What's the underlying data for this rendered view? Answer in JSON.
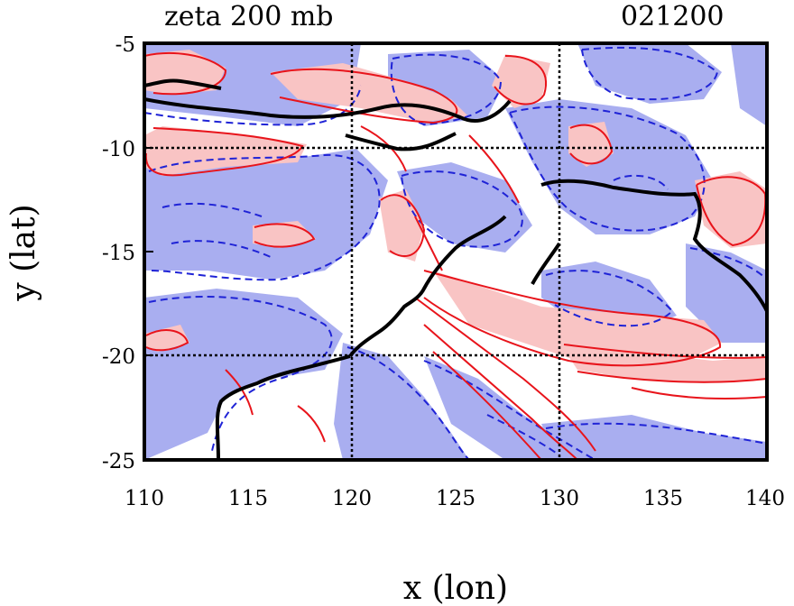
{
  "title": {
    "variable": "zeta 200 mb",
    "timestamp": "021200"
  },
  "chart_data": {
    "type": "contour-map",
    "title": "zeta 200 mb",
    "time_label": "021200",
    "xlabel": "x (lon)",
    "ylabel": "y (lat)",
    "xlim": [
      110,
      140
    ],
    "ylim": [
      -25,
      -5
    ],
    "xticks": [
      "110",
      "115",
      "120",
      "125",
      "130",
      "135",
      "140"
    ],
    "yticks": [
      "-5",
      "-10",
      "-15",
      "-20",
      "-25"
    ],
    "x_tick_values": [
      110,
      115,
      120,
      125,
      130,
      135,
      140
    ],
    "y_tick_values": [
      -5,
      -10,
      -15,
      -20,
      -25
    ],
    "gridlines_lon": [
      120,
      130
    ],
    "gridlines_lat": [
      -10,
      -20
    ],
    "positive_contour_color": "#e8141b",
    "positive_fill_color": "#f9c4c4",
    "negative_contour_color": "#1f23d6",
    "negative_fill_color": "#a9aef0",
    "coastline_color": "#000000"
  }
}
